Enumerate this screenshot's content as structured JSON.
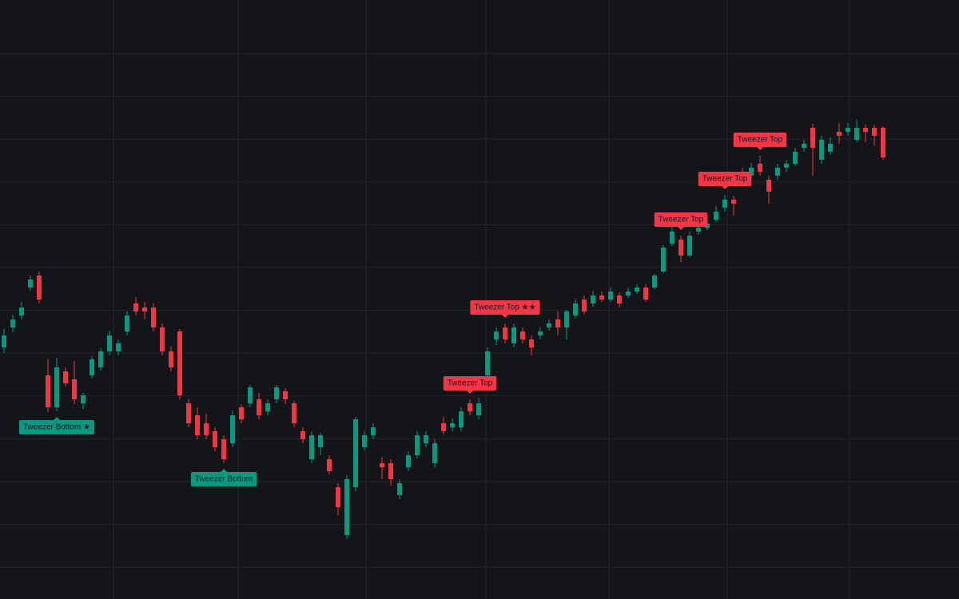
{
  "chart_data": {
    "type": "candlestick",
    "ylim": [
      0,
      750
    ],
    "grid": true,
    "up_color": "#089981",
    "down_color": "#f23645",
    "open": [
      315,
      340,
      355,
      390,
      405,
      280,
      240,
      285,
      275,
      245,
      280,
      290,
      310,
      310,
      335,
      370,
      365,
      365,
      340,
      310,
      335,
      245,
      230,
      220,
      210,
      200,
      195,
      240,
      245,
      250,
      235,
      250,
      260,
      245,
      210,
      175,
      190,
      175,
      140,
      80,
      140,
      190,
      205,
      170,
      170,
      130,
      165,
      180,
      195,
      170,
      220,
      215,
      215,
      245,
      230,
      280,
      325,
      340,
      320,
      335,
      325,
      330,
      340,
      350,
      340,
      355,
      375,
      370,
      380,
      375,
      380,
      380,
      385,
      390,
      390,
      410,
      445,
      450,
      430,
      460,
      465,
      475,
      490,
      500,
      535,
      530,
      545,
      525,
      530,
      540,
      545,
      565,
      590,
      550,
      560,
      585,
      585,
      575,
      590,
      590,
      590
    ],
    "high": [
      338,
      356,
      372,
      405,
      410,
      300,
      302,
      290,
      298,
      258,
      304,
      314,
      336,
      325,
      360,
      378,
      372,
      370,
      345,
      316,
      338,
      250,
      240,
      232,
      215,
      205,
      236,
      244,
      268,
      258,
      250,
      268,
      264,
      248,
      215,
      210,
      208,
      180,
      145,
      155,
      228,
      210,
      220,
      178,
      175,
      150,
      185,
      210,
      210,
      200,
      228,
      226,
      240,
      250,
      252,
      315,
      340,
      345,
      345,
      340,
      330,
      340,
      350,
      360,
      362,
      375,
      380,
      386,
      385,
      390,
      384,
      390,
      394,
      394,
      407,
      443,
      466,
      455,
      460,
      470,
      474,
      492,
      506,
      505,
      540,
      546,
      555,
      530,
      545,
      550,
      565,
      575,
      595,
      580,
      578,
      596,
      596,
      600,
      594,
      594,
      592
    ],
    "low": [
      308,
      334,
      350,
      386,
      370,
      234,
      235,
      266,
      244,
      238,
      276,
      286,
      305,
      305,
      330,
      355,
      350,
      335,
      305,
      285,
      250,
      215,
      200,
      200,
      185,
      170,
      190,
      220,
      240,
      225,
      230,
      245,
      244,
      215,
      195,
      170,
      180,
      156,
      105,
      75,
      135,
      186,
      200,
      150,
      142,
      125,
      160,
      176,
      190,
      165,
      206,
      210,
      210,
      230,
      225,
      276,
      318,
      320,
      315,
      320,
      305,
      325,
      336,
      330,
      325,
      352,
      356,
      366,
      372,
      372,
      365,
      377,
      382,
      372,
      388,
      408,
      442,
      422,
      428,
      456,
      462,
      472,
      485,
      480,
      520,
      525,
      530,
      495,
      525,
      535,
      542,
      560,
      530,
      545,
      556,
      570,
      580,
      572,
      572,
      568,
      550
    ],
    "close": [
      330,
      350,
      365,
      400,
      375,
      240,
      290,
      270,
      250,
      255,
      300,
      310,
      330,
      320,
      355,
      360,
      360,
      340,
      310,
      290,
      255,
      220,
      205,
      205,
      190,
      175,
      230,
      225,
      265,
      230,
      245,
      265,
      250,
      220,
      200,
      205,
      205,
      160,
      115,
      150,
      225,
      205,
      215,
      165,
      150,
      145,
      180,
      205,
      205,
      195,
      210,
      220,
      235,
      235,
      245,
      310,
      335,
      325,
      340,
      325,
      315,
      335,
      345,
      340,
      360,
      370,
      360,
      380,
      375,
      385,
      370,
      385,
      390,
      375,
      405,
      440,
      460,
      430,
      455,
      465,
      470,
      485,
      500,
      495,
      525,
      540,
      535,
      510,
      540,
      545,
      560,
      570,
      565,
      575,
      570,
      580,
      590,
      590,
      585,
      580,
      553
    ],
    "annotations": [
      {
        "text": "Tweezer Bottom ★",
        "candle": 6,
        "position": "below"
      },
      {
        "text": "Tweezer Bottom",
        "candle": 25,
        "position": "below"
      },
      {
        "text": "Tweezer Top",
        "candle": 53,
        "position": "above"
      },
      {
        "text": "Tweezer Top ★★",
        "candle": 57,
        "position": "above"
      },
      {
        "text": "Tweezer Top",
        "candle": 77,
        "position": "above"
      },
      {
        "text": "Tweezer Top",
        "candle": 82,
        "position": "above"
      },
      {
        "text": "Tweezer Top",
        "candle": 86,
        "position": "above"
      }
    ]
  }
}
